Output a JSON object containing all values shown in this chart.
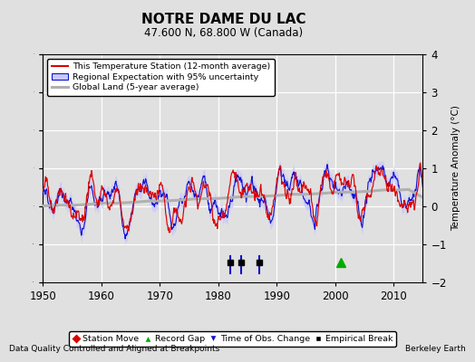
{
  "title": "NOTRE DAME DU LAC",
  "subtitle": "47.600 N, 68.800 W (Canada)",
  "ylabel": "Temperature Anomaly (°C)",
  "xlabel_note": "Data Quality Controlled and Aligned at Breakpoints",
  "credit": "Berkeley Earth",
  "xlim": [
    1950,
    2015
  ],
  "ylim": [
    -2,
    4
  ],
  "yticks": [
    -2,
    -1,
    0,
    1,
    2,
    3,
    4
  ],
  "xticks": [
    1950,
    1960,
    1970,
    1980,
    1990,
    2000,
    2010
  ],
  "bg_color": "#e0e0e0",
  "plot_bg_color": "#e0e0e0",
  "obs_change_years": [
    1982,
    1984,
    1987
  ],
  "empirical_break_years": [
    1982,
    1984,
    1987
  ],
  "record_gap_years": [
    2001
  ],
  "seed": 17
}
